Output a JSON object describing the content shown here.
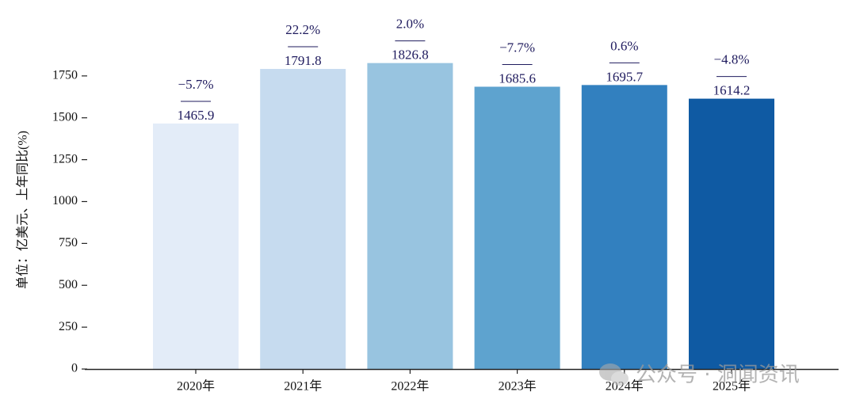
{
  "chart_data": {
    "type": "bar",
    "y_label": "单位：亿美元、上年同比(%)",
    "categories": [
      "2020年",
      "2021年",
      "2022年",
      "2023年",
      "2024年",
      "2025年"
    ],
    "values": [
      1465.9,
      1791.8,
      1826.8,
      1685.6,
      1695.7,
      1614.2
    ],
    "growth": [
      -5.7,
      22.2,
      2.0,
      -7.7,
      0.6,
      -4.8
    ],
    "growth_labels": [
      "−5.7%",
      "22.2%",
      "2.0%",
      "−7.7%",
      "0.6%",
      "−4.8%"
    ],
    "colors": [
      "#e3ecf8",
      "#c6dbef",
      "#98c4e0",
      "#5ea3cf",
      "#3280bf",
      "#0f5aa3"
    ],
    "ylim": [
      0,
      2000
    ],
    "yticks": [
      0,
      250,
      500,
      750,
      1000,
      1250,
      1500,
      1750
    ],
    "watermark": "公众号 · 洞闻资讯"
  }
}
